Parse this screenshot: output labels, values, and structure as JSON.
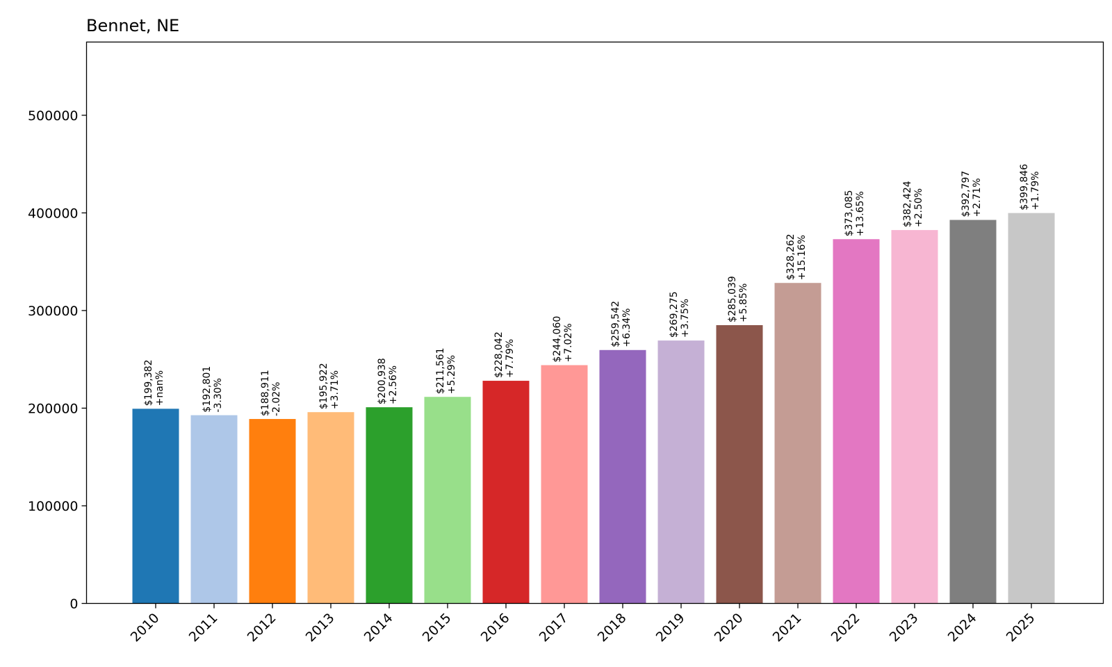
{
  "chart_data": {
    "type": "bar",
    "title": "Bennet, NE",
    "xlabel": "",
    "ylabel": "",
    "categories": [
      "2010",
      "2011",
      "2012",
      "2013",
      "2014",
      "2015",
      "2016",
      "2017",
      "2018",
      "2019",
      "2020",
      "2021",
      "2022",
      "2023",
      "2024",
      "2025"
    ],
    "values": [
      199382,
      192801,
      188911,
      195922,
      200938,
      211561,
      228042,
      244060,
      259542,
      269275,
      285039,
      328262,
      373085,
      382424,
      392797,
      399846
    ],
    "value_labels": [
      "$199,382",
      "$192,801",
      "$188,911",
      "$195,922",
      "$200,938",
      "$211,561",
      "$228,042",
      "$244,060",
      "$259,542",
      "$269,275",
      "$285,039",
      "$328,262",
      "$373,085",
      "$382,424",
      "$392,797",
      "$399,846"
    ],
    "change_labels": [
      "+nan%",
      "-3.30%",
      "-2.02%",
      "+3.71%",
      "+2.56%",
      "+5.29%",
      "+7.79%",
      "+7.02%",
      "+6.34%",
      "+3.75%",
      "+5.85%",
      "+15.16%",
      "+13.65%",
      "+2.50%",
      "+2.71%",
      "+1.79%"
    ],
    "colors": [
      "#1f77b4",
      "#aec7e8",
      "#ff7f0e",
      "#ffbb78",
      "#2ca02c",
      "#98df8a",
      "#d62728",
      "#ff9896",
      "#9467bd",
      "#c5b0d5",
      "#8c564b",
      "#c49c94",
      "#e377c2",
      "#f7b6d2",
      "#7f7f7f",
      "#c7c7c7"
    ],
    "ylim": [
      0,
      575000
    ],
    "yticks": [
      0,
      100000,
      200000,
      300000,
      400000,
      500000
    ],
    "ytick_labels": [
      "0",
      "100000",
      "200000",
      "300000",
      "400000",
      "500000"
    ],
    "grid": false,
    "legend": "none",
    "xtick_rotation": 45
  }
}
